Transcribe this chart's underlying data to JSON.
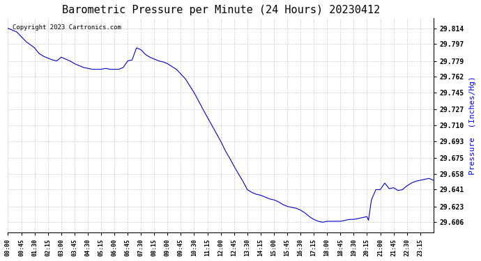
{
  "title": "Barometric Pressure per Minute (24 Hours) 20230412",
  "copyright_text": "Copyright 2023 Cartronics.com",
  "ylabel": "Pressure  (Inches/Hg)",
  "ylabel_color": "#0000FF",
  "line_color": "#0000CC",
  "background_color": "#ffffff",
  "grid_color": "#cccccc",
  "yticks": [
    29.606,
    29.623,
    29.641,
    29.658,
    29.675,
    29.693,
    29.71,
    29.727,
    29.745,
    29.762,
    29.779,
    29.797,
    29.814
  ],
  "ylim": [
    29.595,
    29.825
  ],
  "xtick_positions": [
    0,
    45,
    90,
    135,
    180,
    225,
    270,
    315,
    360,
    405,
    450,
    495,
    540,
    585,
    630,
    675,
    720,
    765,
    810,
    855,
    900,
    945,
    990,
    1035,
    1080,
    1125,
    1170,
    1215,
    1260,
    1305,
    1350,
    1395
  ],
  "xtick_labels": [
    "00:00",
    "00:45",
    "01:30",
    "02:15",
    "03:00",
    "03:45",
    "04:30",
    "05:15",
    "06:00",
    "06:45",
    "07:30",
    "08:15",
    "09:00",
    "09:45",
    "10:30",
    "11:15",
    "12:00",
    "12:45",
    "13:30",
    "14:15",
    "15:00",
    "15:45",
    "16:30",
    "17:15",
    "18:00",
    "18:45",
    "19:30",
    "20:15",
    "21:00",
    "21:45",
    "22:30",
    "23:15"
  ],
  "keypoints_t": [
    0,
    30,
    60,
    90,
    105,
    120,
    135,
    150,
    165,
    180,
    210,
    225,
    240,
    255,
    270,
    285,
    300,
    315,
    330,
    345,
    360,
    375,
    390,
    405,
    420,
    435,
    450,
    465,
    480,
    495,
    510,
    525,
    540,
    570,
    600,
    630,
    660,
    690,
    720,
    735,
    750,
    765,
    780,
    795,
    810,
    825,
    840,
    855,
    870,
    885,
    900,
    915,
    930,
    945,
    960,
    975,
    990,
    1005,
    1020,
    1035,
    1050,
    1065,
    1080,
    1095,
    1110,
    1125,
    1140,
    1155,
    1170,
    1185,
    1200,
    1215,
    1220,
    1230,
    1245,
    1260,
    1275,
    1290,
    1305,
    1320,
    1335,
    1350,
    1365,
    1380,
    1395,
    1410,
    1425,
    1440
  ],
  "keypoints_v": [
    29.814,
    29.81,
    29.8,
    29.793,
    29.787,
    29.784,
    29.782,
    29.78,
    29.779,
    29.783,
    29.779,
    29.776,
    29.774,
    29.772,
    29.771,
    29.77,
    29.77,
    29.77,
    29.771,
    29.77,
    29.77,
    29.77,
    29.772,
    29.779,
    29.78,
    29.793,
    29.791,
    29.786,
    29.783,
    29.781,
    29.779,
    29.778,
    29.776,
    29.77,
    29.76,
    29.745,
    29.727,
    29.71,
    29.693,
    29.683,
    29.675,
    29.666,
    29.658,
    29.65,
    29.641,
    29.638,
    29.636,
    29.635,
    29.633,
    29.631,
    29.63,
    29.628,
    29.625,
    29.623,
    29.622,
    29.621,
    29.619,
    29.616,
    29.612,
    29.609,
    29.607,
    29.606,
    29.607,
    29.607,
    29.607,
    29.607,
    29.608,
    29.609,
    29.609,
    29.61,
    29.611,
    29.612,
    29.608,
    29.63,
    29.641,
    29.641,
    29.648,
    29.642,
    29.643,
    29.64,
    29.641,
    29.645,
    29.648,
    29.65,
    29.651,
    29.652,
    29.653,
    29.651
  ]
}
